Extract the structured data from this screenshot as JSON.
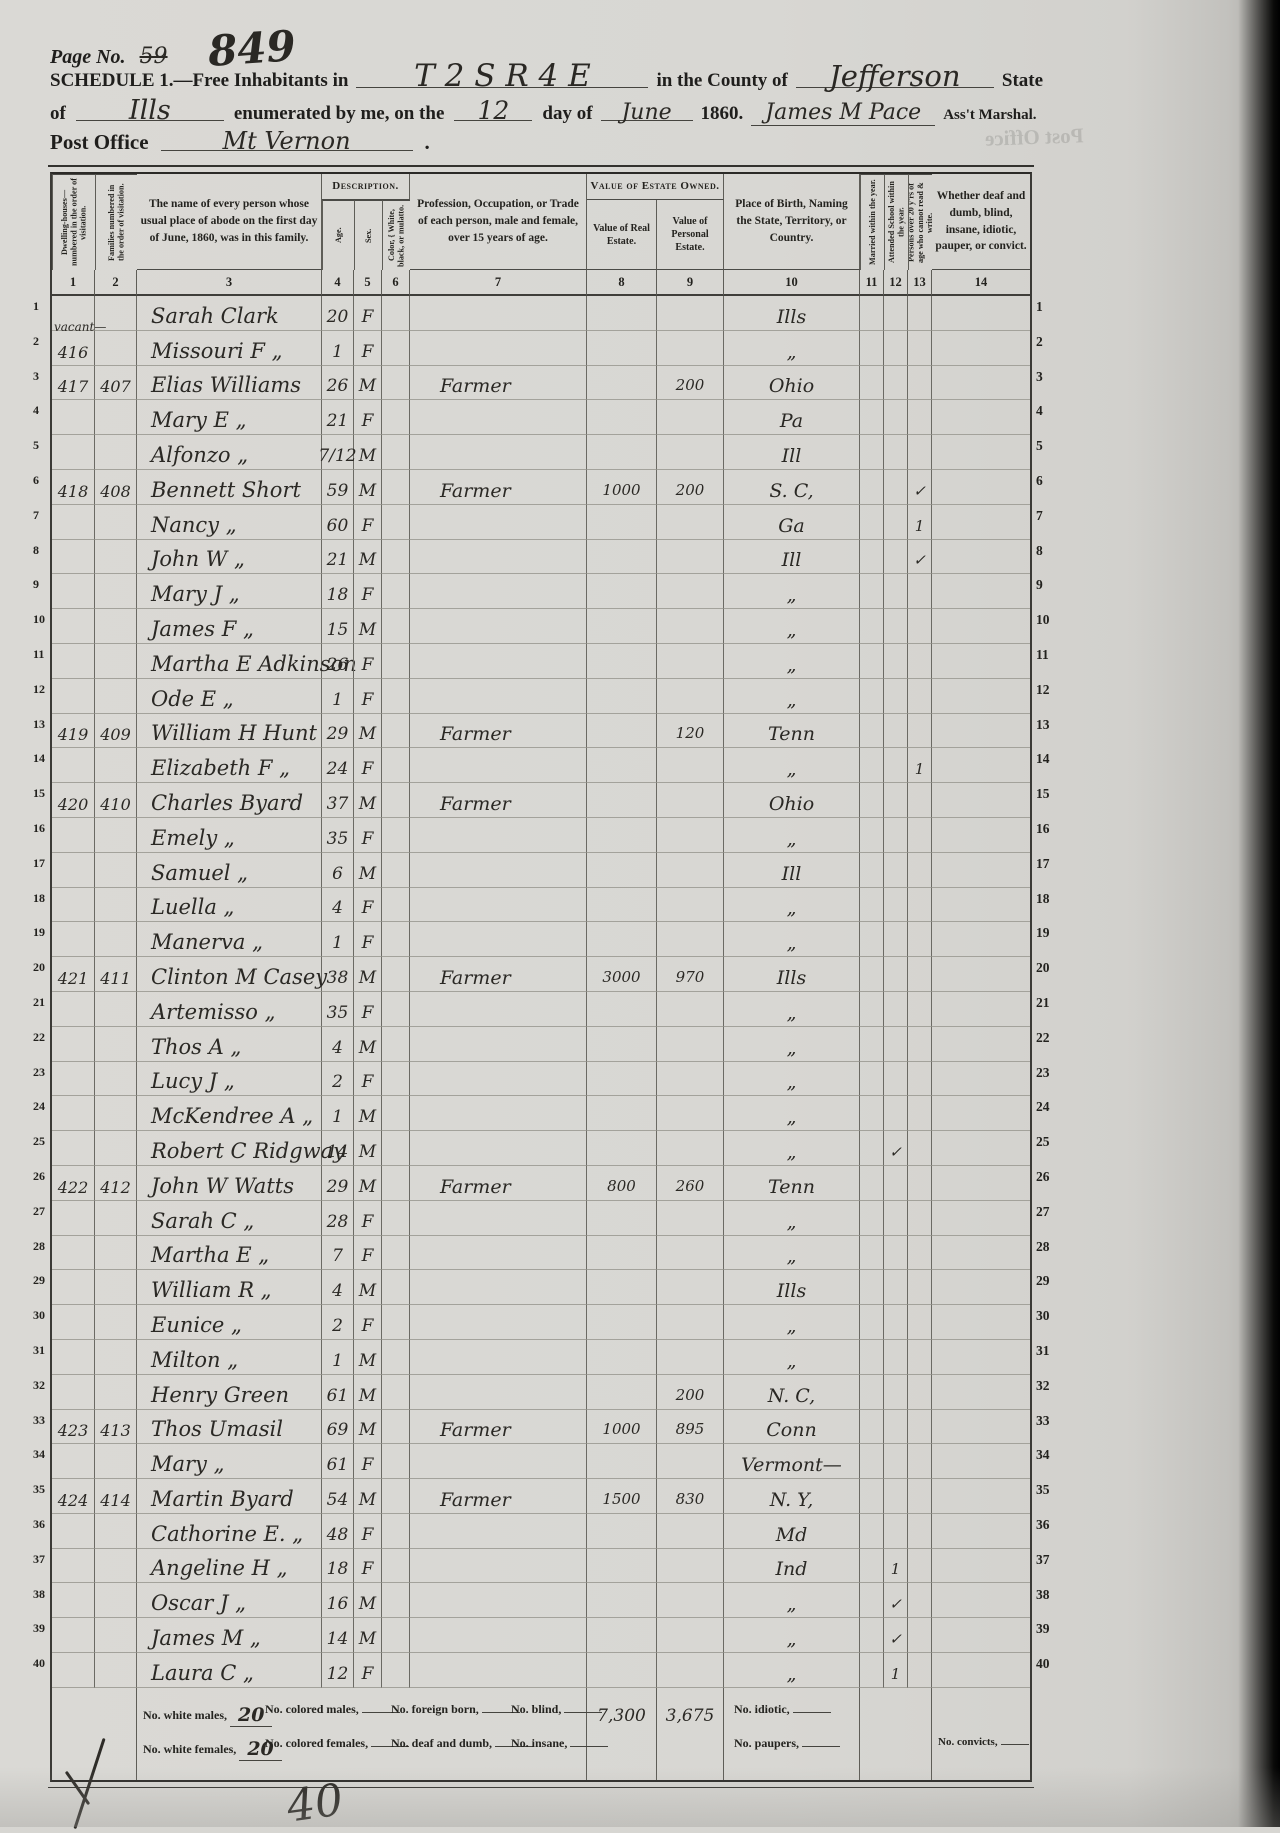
{
  "colors": {
    "paper": "#d7d6d2",
    "printed_ink": "#1f1e1c",
    "handwriting_ink": "#2a2824",
    "edge_band": "#000000"
  },
  "header": {
    "page_no_label": "Page No.",
    "page_no_old": "59",
    "page_no_new": "849",
    "schedule_prefix": "SCHEDULE 1.—Free Inhabitants in",
    "district": "T 2 S R 4 E",
    "county_label": "in the County of",
    "county": "Jefferson",
    "state_label": "State",
    "of_label": "of",
    "state": "Ills",
    "enum_label": "enumerated by me, on the",
    "day": "12",
    "day_of_label": "day of",
    "month": "June",
    "year": "1860.",
    "marshal_name": "James M Pace",
    "marshal_title": "Ass't Marshal.",
    "post_office_label": "Post Office",
    "post_office": "Mt Vernon",
    "post_office_period": ".",
    "bleed_text": "Post Office"
  },
  "table": {
    "col_headers": {
      "dwelling": "Dwelling-houses— numbered in the order of visitation.",
      "family": "Families numbered in the order of visitation.",
      "name": "The name of every person whose usual place of abode on the first day of June, 1860, was in this family.",
      "description_group": "Description.",
      "age": "Age.",
      "sex": "Sex.",
      "color": "Color, { White, black, or mulatto.",
      "occupation": "Profession, Occupation, or Trade of each person, male and female, over 15 years of age.",
      "estate_group": "Value of Estate Owned.",
      "real": "Value of Real Estate.",
      "personal": "Value of Personal Estate.",
      "birth": "Place of Birth, Naming the State, Territory, or Country.",
      "married": "Married within the year.",
      "school": "Attended School within the year.",
      "cannot_read": "Persons over 20 y'rs of age who cannot read & write.",
      "remarks": "Whether deaf and dumb, blind, insane, idiotic, pauper, or convict."
    },
    "col_numbers": [
      "1",
      "2",
      "3",
      "4",
      "5",
      "6",
      "7",
      "8",
      "9",
      "10",
      "11",
      "12",
      "13",
      "14"
    ],
    "rows": [
      {
        "n": 1,
        "name": "Sarah Clark",
        "age": "20",
        "sex": "F",
        "birth": "Ills"
      },
      {
        "n": 2,
        "dw": "416",
        "dw_note": "vacant—",
        "name": "Missouri F „",
        "age": "1",
        "sex": "F",
        "birth": "„"
      },
      {
        "n": 3,
        "dw": "417",
        "fam": "407",
        "name": "Elias Williams",
        "age": "26",
        "sex": "M",
        "occ": "Farmer",
        "pe": "200",
        "birth": "Ohio"
      },
      {
        "n": 4,
        "name": "Mary E „",
        "age": "21",
        "sex": "F",
        "birth": "Pa"
      },
      {
        "n": 5,
        "name": "Alfonzo „",
        "age": "7/12",
        "sex": "M",
        "birth": "Ill"
      },
      {
        "n": 6,
        "dw": "418",
        "fam": "408",
        "name": "Bennett Short",
        "age": "59",
        "sex": "M",
        "occ": "Farmer",
        "re": "1000",
        "pe": "200",
        "birth": "S. C,",
        "r": "✓"
      },
      {
        "n": 7,
        "name": "Nancy „",
        "age": "60",
        "sex": "F",
        "birth": "Ga",
        "r": "1"
      },
      {
        "n": 8,
        "name": "John W „",
        "age": "21",
        "sex": "M",
        "birth": "Ill",
        "r": "✓"
      },
      {
        "n": 9,
        "name": "Mary J „",
        "age": "18",
        "sex": "F",
        "birth": "„"
      },
      {
        "n": 10,
        "name": "James F „",
        "age": "15",
        "sex": "M",
        "birth": "„"
      },
      {
        "n": 11,
        "name": "Martha E Adkinson",
        "age": "26",
        "sex": "F",
        "birth": "„"
      },
      {
        "n": 12,
        "name": "Ode E „",
        "age": "1",
        "sex": "F",
        "birth": "„"
      },
      {
        "n": 13,
        "dw": "419",
        "fam": "409",
        "name": "William H Hunt",
        "age": "29",
        "sex": "M",
        "occ": "Farmer",
        "pe": "120",
        "birth": "Tenn"
      },
      {
        "n": 14,
        "name": "Elizabeth F „",
        "age": "24",
        "sex": "F",
        "birth": "„",
        "r": "1"
      },
      {
        "n": 15,
        "dw": "420",
        "fam": "410",
        "name": "Charles Byard",
        "age": "37",
        "sex": "M",
        "occ": "Farmer",
        "birth": "Ohio"
      },
      {
        "n": 16,
        "name": "Emely „",
        "age": "35",
        "sex": "F",
        "birth": "„"
      },
      {
        "n": 17,
        "name": "Samuel „",
        "age": "6",
        "sex": "M",
        "birth": "Ill"
      },
      {
        "n": 18,
        "name": "Luella „",
        "age": "4",
        "sex": "F",
        "birth": "„"
      },
      {
        "n": 19,
        "name": "Manerva „",
        "age": "1",
        "sex": "F",
        "birth": "„"
      },
      {
        "n": 20,
        "dw": "421",
        "fam": "411",
        "name": "Clinton M Casey",
        "age": "38",
        "sex": "M",
        "occ": "Farmer",
        "re": "3000",
        "pe": "970",
        "birth": "Ills"
      },
      {
        "n": 21,
        "name": "Artemisso „",
        "age": "35",
        "sex": "F",
        "birth": "„"
      },
      {
        "n": 22,
        "name": "Thos A „",
        "age": "4",
        "sex": "M",
        "birth": "„"
      },
      {
        "n": 23,
        "name": "Lucy J „",
        "age": "2",
        "sex": "F",
        "birth": "„"
      },
      {
        "n": 24,
        "name": "McKendree A „",
        "age": "1",
        "sex": "M",
        "birth": "„"
      },
      {
        "n": 25,
        "name": "Robert C Ridgway",
        "age": "14",
        "sex": "M",
        "birth": "„",
        "s": "✓"
      },
      {
        "n": 26,
        "dw": "422",
        "fam": "412",
        "name": "John W Watts",
        "age": "29",
        "sex": "M",
        "occ": "Farmer",
        "re": "800",
        "pe": "260",
        "birth": "Tenn"
      },
      {
        "n": 27,
        "name": "Sarah C „",
        "age": "28",
        "sex": "F",
        "birth": "„"
      },
      {
        "n": 28,
        "name": "Martha E „",
        "age": "7",
        "sex": "F",
        "birth": "„"
      },
      {
        "n": 29,
        "name": "William R „",
        "age": "4",
        "sex": "M",
        "birth": "Ills"
      },
      {
        "n": 30,
        "name": "Eunice „",
        "age": "2",
        "sex": "F",
        "birth": "„"
      },
      {
        "n": 31,
        "name": "Milton „",
        "age": "1",
        "sex": "M",
        "birth": "„"
      },
      {
        "n": 32,
        "name": "Henry Green",
        "age": "61",
        "sex": "M",
        "pe": "200",
        "birth": "N. C,"
      },
      {
        "n": 33,
        "dw": "423",
        "fam": "413",
        "name": "Thos Umasil",
        "age": "69",
        "sex": "M",
        "occ": "Farmer",
        "re": "1000",
        "pe": "895",
        "birth": "Conn"
      },
      {
        "n": 34,
        "name": "Mary „",
        "age": "61",
        "sex": "F",
        "birth": "Vermont—"
      },
      {
        "n": 35,
        "dw": "424",
        "fam": "414",
        "name": "Martin Byard",
        "age": "54",
        "sex": "M",
        "occ": "Farmer",
        "re": "1500",
        "pe": "830",
        "birth": "N. Y,"
      },
      {
        "n": 36,
        "name": "Cathorine E. „",
        "age": "48",
        "sex": "F",
        "birth": "Md"
      },
      {
        "n": 37,
        "name": "Angeline H „",
        "age": "18",
        "sex": "F",
        "birth": "Ind",
        "s": "1"
      },
      {
        "n": 38,
        "name": "Oscar J „",
        "age": "16",
        "sex": "M",
        "birth": "„",
        "s": "✓"
      },
      {
        "n": 39,
        "name": "James M „",
        "age": "14",
        "sex": "M",
        "birth": "„",
        "s": "✓"
      },
      {
        "n": 40,
        "name": "Laura C „",
        "age": "12",
        "sex": "F",
        "birth": "„",
        "s": "1"
      }
    ]
  },
  "footer": {
    "line1": [
      {
        "label": "No. white males,",
        "value": "20"
      },
      {
        "label": "No. colored males,",
        "value": ""
      },
      {
        "label": "No. foreign born,",
        "value": ""
      },
      {
        "label": "No. blind,",
        "value": ""
      }
    ],
    "line2": [
      {
        "label": "No. white females,",
        "value": "20"
      },
      {
        "label": "No. colored females,",
        "value": ""
      },
      {
        "label": "No. deaf and dumb,",
        "value": ""
      },
      {
        "label": "No. insane,",
        "value": ""
      }
    ],
    "real_total": "7,300",
    "personal_total": "3,675",
    "idiotic_label": "No. idiotic,",
    "paupers_label": "No. paupers,",
    "convicts_label": "No. convicts,",
    "bottom_scrawl": "40"
  }
}
